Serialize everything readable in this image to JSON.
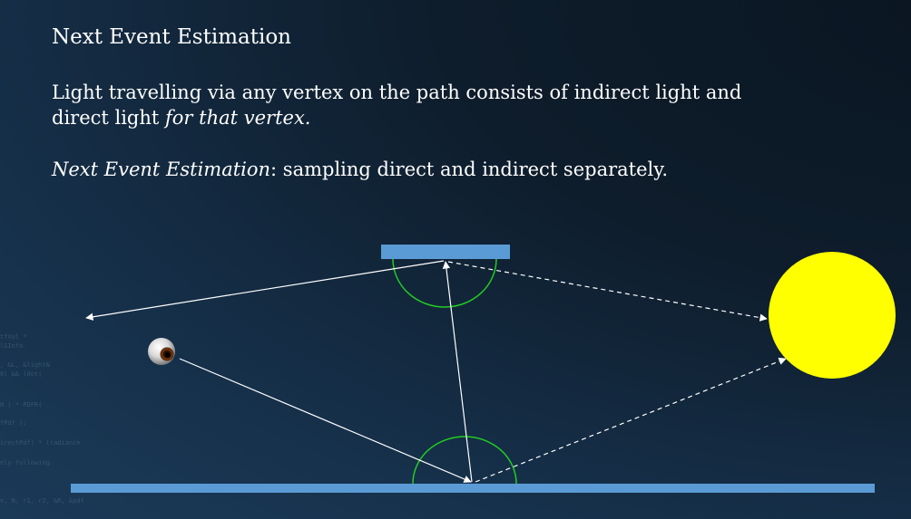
{
  "slide": {
    "title": "Next Event Estimation",
    "paragraph1": {
      "main": "Light travelling via any vertex on the path consists of indirect light and direct light ",
      "emphasis": "for that vertex."
    },
    "paragraph2": {
      "emphasis": "Next Event Estimation",
      "rest": ": sampling direct and indirect separately."
    }
  },
  "background_code": [
    "tfVal *",
    "lSInfo",
    ", &L, &lightN",
    "0) && (dot(",
    "N ) * PDFR(",
    "fPdf );",
    "irectPdf) * (radiance",
    "ely following ",
    "e, N, r1, r2, &R, &pdf"
  ],
  "colors": {
    "surface": "#5b9bd5",
    "hemisphere": "#22cc22",
    "light_source": "#ffff00",
    "ray": "#ffffff"
  },
  "icons": {
    "camera": "eye-icon",
    "light": "sun-icon"
  }
}
